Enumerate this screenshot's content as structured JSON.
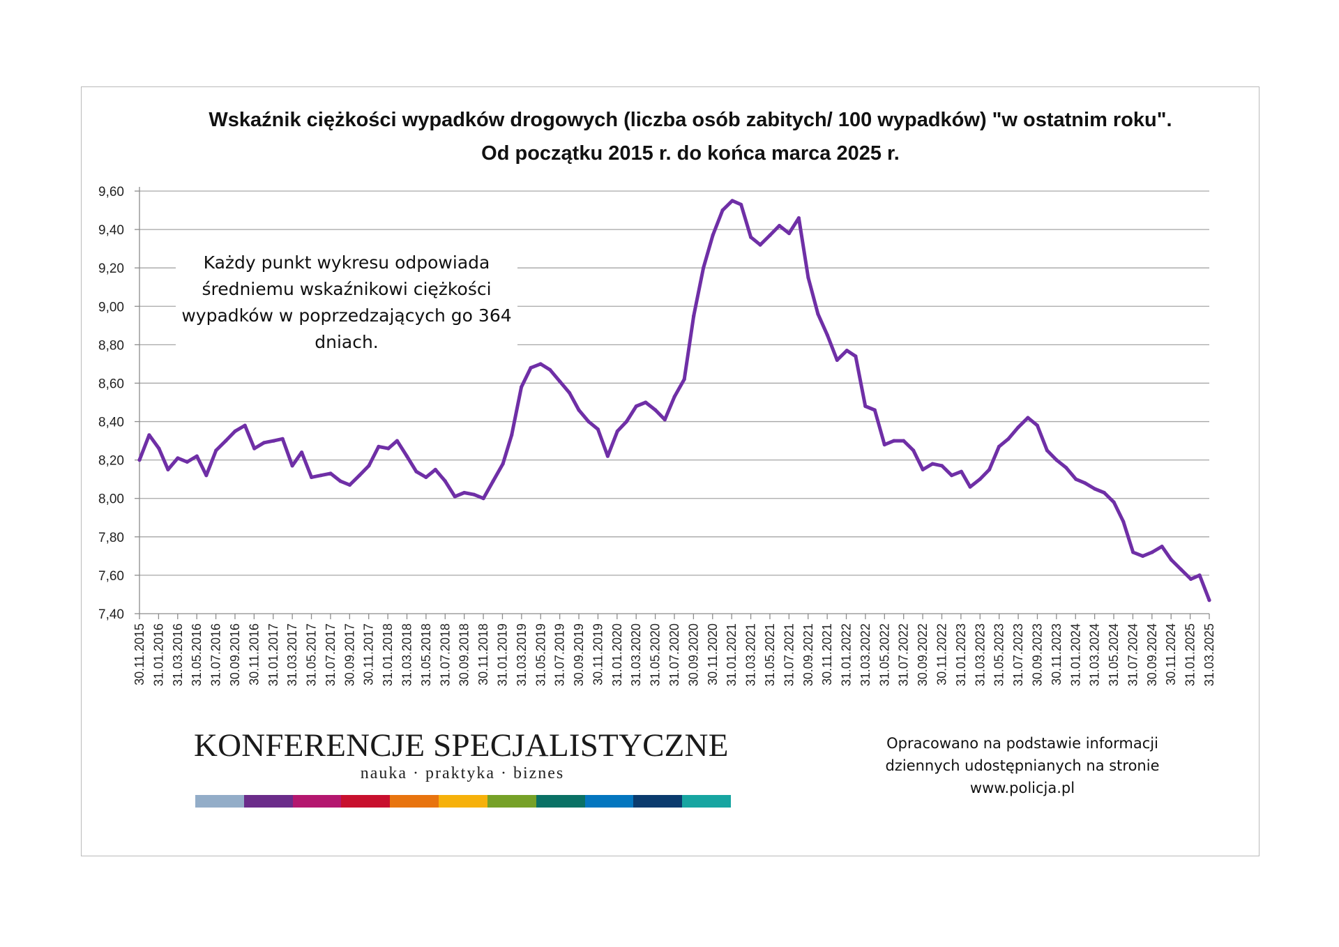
{
  "title_line1": "Wskaźnik ciężkości wypadków drogowych (liczba osób zabitych/ 100 wypadków) \"w ostatnim roku\".",
  "title_line2": "Od początku 2015 r. do końca marca 2025 r.",
  "annotation": "Każdy punkt wykresu odpowiada średniemu wskaźnikowi ciężkości wypadków w poprzedzających go 364 dniach.",
  "logo": {
    "name": "KONFERENCJE SPECJALISTYCZNE",
    "tagline": "nauka · praktyka · biznes",
    "stripe_colors": [
      "#93adc8",
      "#6b2c8a",
      "#b4176f",
      "#c8102e",
      "#e8740f",
      "#f6b10b",
      "#76a128",
      "#0a7165",
      "#0476bf",
      "#0b3b6e",
      "#17a5a1"
    ]
  },
  "source_note": "Opracowano na podstawie informacji dziennych udostępnianych na stronie www.policja.pl",
  "chart_data": {
    "type": "line",
    "title": "Wskaźnik ciężkości wypadków drogowych (liczba osób zabitych/ 100 wypadków) \"w ostatnim roku\". Od początku 2015 r. do końca marca 2025 r.",
    "xlabel": "",
    "ylabel": "",
    "ylim": [
      7.4,
      9.6
    ],
    "y_ticks": [
      "9,60",
      "9,40",
      "9,20",
      "9,00",
      "8,80",
      "8,60",
      "8,40",
      "8,20",
      "8,00",
      "7,80",
      "7,60",
      "7,40"
    ],
    "x_ticks": [
      "30.11.2015",
      "31.01.2016",
      "31.03.2016",
      "31.05.2016",
      "31.07.2016",
      "30.09.2016",
      "30.11.2016",
      "31.01.2017",
      "31.03.2017",
      "31.05.2017",
      "31.07.2017",
      "30.09.2017",
      "30.11.2017",
      "31.01.2018",
      "31.03.2018",
      "31.05.2018",
      "31.07.2018",
      "30.09.2018",
      "30.11.2018",
      "31.01.2019",
      "31.03.2019",
      "31.05.2019",
      "31.07.2019",
      "30.09.2019",
      "30.11.2019",
      "31.01.2020",
      "31.03.2020",
      "31.05.2020",
      "31.07.2020",
      "30.09.2020",
      "30.11.2020",
      "31.01.2021",
      "31.03.2021",
      "31.05.2021",
      "31.07.2021",
      "30.09.2021",
      "30.11.2021",
      "31.01.2022",
      "31.03.2022",
      "31.05.2022",
      "31.07.2022",
      "30.09.2022",
      "30.11.2022",
      "31.01.2023",
      "31.03.2023",
      "31.05.2023",
      "31.07.2023",
      "30.09.2023",
      "30.11.2023",
      "31.01.2024",
      "31.03.2024",
      "31.05.2024",
      "31.07.2024",
      "30.09.2024",
      "30.11.2024",
      "31.01.2025",
      "31.03.2025"
    ],
    "grid": true,
    "legend": "none",
    "line_color": "#6f2fa6",
    "series": [
      {
        "x": [
          "2015-11-30",
          "2015-12-31",
          "2016-01-31",
          "2016-02-29",
          "2016-03-31",
          "2016-04-30",
          "2016-05-31",
          "2016-06-30",
          "2016-07-31",
          "2016-08-31",
          "2016-09-30",
          "2016-10-31",
          "2016-11-30",
          "2016-12-31",
          "2017-01-31",
          "2017-02-28",
          "2017-03-31",
          "2017-04-30",
          "2017-05-31",
          "2017-06-30",
          "2017-07-31",
          "2017-08-31",
          "2017-09-30",
          "2017-10-31",
          "2017-11-30",
          "2017-12-31",
          "2018-01-31",
          "2018-02-28",
          "2018-03-31",
          "2018-04-30",
          "2018-05-31",
          "2018-06-30",
          "2018-07-31",
          "2018-08-31",
          "2018-09-30",
          "2018-10-31",
          "2018-11-30",
          "2018-12-31",
          "2019-01-31",
          "2019-02-28",
          "2019-03-31",
          "2019-04-30",
          "2019-05-31",
          "2019-06-30",
          "2019-07-31",
          "2019-08-31",
          "2019-09-30",
          "2019-10-31",
          "2019-11-30",
          "2019-12-31",
          "2020-01-31",
          "2020-02-29",
          "2020-03-31",
          "2020-04-30",
          "2020-05-31",
          "2020-06-30",
          "2020-07-31",
          "2020-08-31",
          "2020-09-30",
          "2020-10-31",
          "2020-11-30",
          "2020-12-31",
          "2021-01-31",
          "2021-02-28",
          "2021-03-31",
          "2021-04-30",
          "2021-05-31",
          "2021-06-30",
          "2021-07-31",
          "2021-08-31",
          "2021-09-30",
          "2021-10-31",
          "2021-11-30",
          "2021-12-31",
          "2022-01-31",
          "2022-02-28",
          "2022-03-31",
          "2022-04-30",
          "2022-05-31",
          "2022-06-30",
          "2022-07-31",
          "2022-08-31",
          "2022-09-30",
          "2022-10-31",
          "2022-11-30",
          "2022-12-31",
          "2023-01-31",
          "2023-02-28",
          "2023-03-31",
          "2023-04-30",
          "2023-05-31",
          "2023-06-30",
          "2023-07-31",
          "2023-08-31",
          "2023-09-30",
          "2023-10-31",
          "2023-11-30",
          "2023-12-31",
          "2024-01-31",
          "2024-02-29",
          "2024-03-31",
          "2024-04-30",
          "2024-05-31",
          "2024-06-30",
          "2024-07-31",
          "2024-08-31",
          "2024-09-30",
          "2024-10-31",
          "2024-11-30",
          "2024-12-31",
          "2025-01-31",
          "2025-02-28",
          "2025-03-31"
        ],
        "y": [
          8.2,
          8.33,
          8.26,
          8.15,
          8.21,
          8.19,
          8.22,
          8.12,
          8.25,
          8.3,
          8.35,
          8.38,
          8.26,
          8.29,
          8.3,
          8.31,
          8.17,
          8.24,
          8.11,
          8.12,
          8.13,
          8.09,
          8.07,
          8.12,
          8.17,
          8.27,
          8.26,
          8.3,
          8.22,
          8.14,
          8.11,
          8.15,
          8.09,
          8.01,
          8.03,
          8.02,
          8.0,
          8.09,
          8.18,
          8.33,
          8.58,
          8.68,
          8.7,
          8.67,
          8.61,
          8.55,
          8.46,
          8.4,
          8.36,
          8.22,
          8.35,
          8.4,
          8.48,
          8.5,
          8.46,
          8.41,
          8.53,
          8.62,
          8.95,
          9.2,
          9.37,
          9.5,
          9.55,
          9.53,
          9.36,
          9.32,
          9.37,
          9.42,
          9.38,
          9.46,
          9.15,
          8.96,
          8.85,
          8.72,
          8.77,
          8.74,
          8.48,
          8.46,
          8.28,
          8.3,
          8.3,
          8.25,
          8.15,
          8.18,
          8.17,
          8.12,
          8.14,
          8.06,
          8.1,
          8.15,
          8.27,
          8.31,
          8.37,
          8.42,
          8.38,
          8.25,
          8.2,
          8.16,
          8.1,
          8.08,
          8.05,
          8.03,
          7.98,
          7.88,
          7.72,
          7.7,
          7.72,
          7.75,
          7.68,
          7.63,
          7.58,
          7.6,
          7.47
        ]
      }
    ]
  }
}
